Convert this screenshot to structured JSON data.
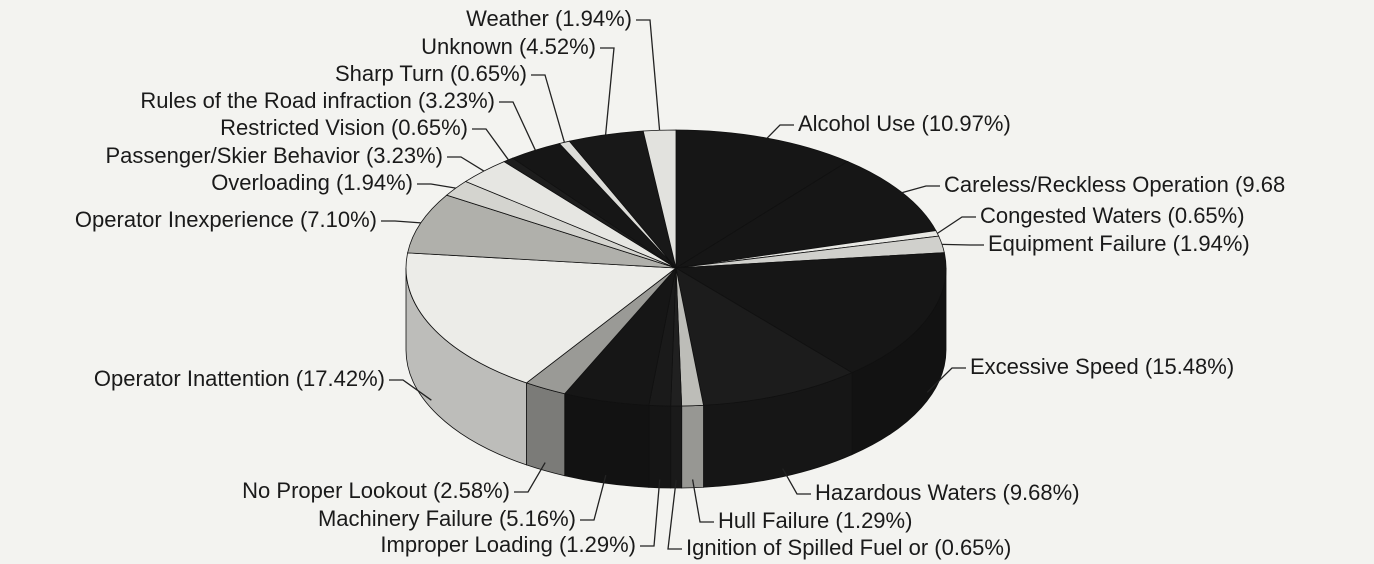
{
  "chart_data": {
    "type": "pie",
    "categories": [
      "Alcohol Use",
      "Careless/Reckless Operation",
      "Congested Waters",
      "Equipment Failure",
      "Excessive Speed",
      "Hazardous Waters",
      "Hull Failure",
      "Ignition of Spilled Fuel or ",
      "Improper Loading",
      "Machinery Failure",
      "No Proper Lookout",
      "Operator Inattention",
      "Operator Inexperience",
      "Overloading",
      "Passenger/Skier Behavior",
      "Restricted Vision",
      "Rules of the Road infraction",
      "Sharp Turn",
      "Unknown",
      "Weather"
    ],
    "values": [
      10.97,
      9.68,
      0.65,
      1.94,
      15.48,
      9.68,
      1.29,
      0.65,
      1.29,
      5.16,
      2.58,
      17.42,
      7.1,
      1.94,
      3.23,
      0.65,
      3.23,
      0.65,
      4.52,
      1.94
    ],
    "value_labels": [
      "(10.97%)",
      "(9.68",
      "(0.65%)",
      "(1.94%)",
      "(15.48%)",
      "(9.68%)",
      "(1.29%)",
      "(0.65%)",
      "(1.29%)",
      "(5.16%)",
      "(2.58%)",
      "(17.42%)",
      "(7.10%)",
      "(1.94%)",
      "(3.23%)",
      "(0.65%)",
      "(3.23%)",
      "(0.65%)",
      "(4.52%)",
      "(1.94%)"
    ],
    "colors": [
      "#161616",
      "#161616",
      "#e8e8e4",
      "#d0d0cc",
      "#161616",
      "#1c1c1c",
      "#bdbdb8",
      "#202020",
      "#1a1a1a",
      "#161616",
      "#9a9a96",
      "#ececE8",
      "#b0b0ab",
      "#d4d4cf",
      "#e6e6e2",
      "#1d1d1d",
      "#161616",
      "#dcdcd8",
      "#181818",
      "#e2e2de"
    ]
  }
}
